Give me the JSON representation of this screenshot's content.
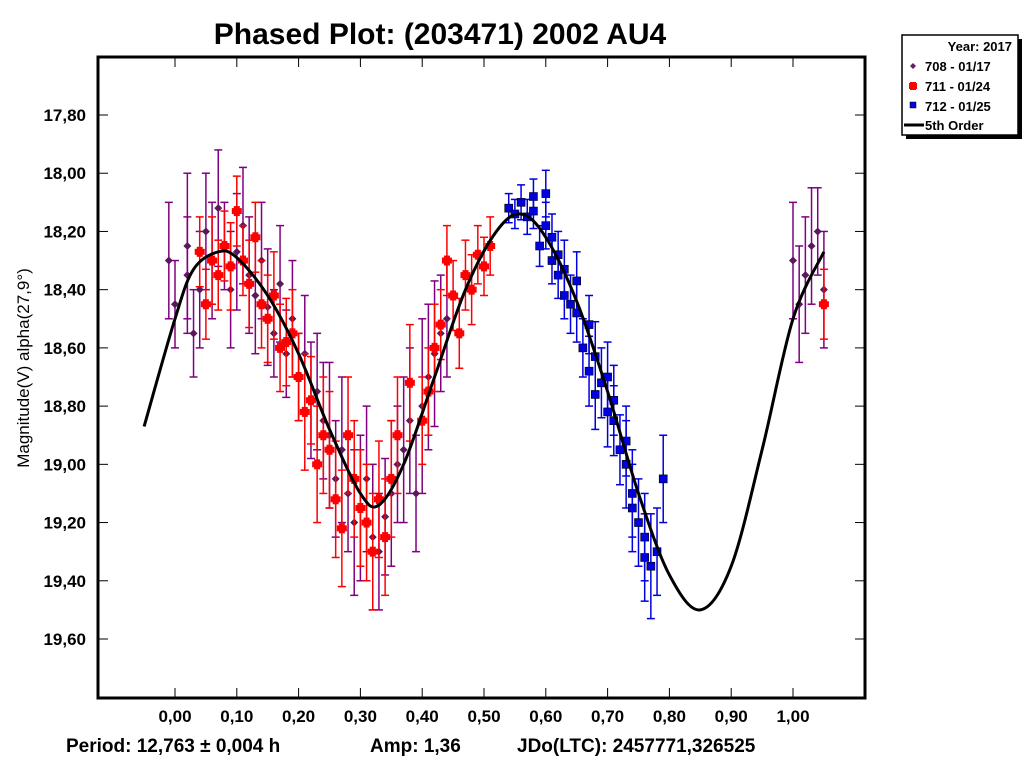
{
  "chart_data": {
    "type": "scatter",
    "title": "Phased Plot: (203471) 2002 AU4",
    "xlabel": "",
    "ylabel": "Magnitude(V) alpha(27,9°)",
    "xlim": [
      -0.08,
      1.07
    ],
    "ylim": [
      19.8,
      17.6
    ],
    "y_inverted": true,
    "x_ticks": [
      "0,00",
      "0,10",
      "0,20",
      "0,30",
      "0,40",
      "0,50",
      "0,60",
      "0,70",
      "0,80",
      "0,90",
      "1,00"
    ],
    "x_tick_values": [
      0,
      0.1,
      0.2,
      0.3,
      0.4,
      0.5,
      0.6,
      0.7,
      0.8,
      0.9,
      1.0
    ],
    "y_ticks": [
      "17,80",
      "18,00",
      "18,20",
      "18,40",
      "18,60",
      "18,80",
      "19,00",
      "19,20",
      "19,40",
      "19,60"
    ],
    "y_tick_values": [
      17.8,
      18.0,
      18.2,
      18.4,
      18.6,
      18.8,
      19.0,
      19.2,
      19.4,
      19.6
    ],
    "grid": false,
    "legend_position": "top-right-outside",
    "legend": {
      "header": "Year: 2017",
      "entries": [
        {
          "label": "708 - 01/17",
          "color": "#6a1b6a",
          "marker": "diamond"
        },
        {
          "label": "711 - 01/24",
          "color": "#ff0000",
          "marker": "star"
        },
        {
          "label": "712 - 01/25",
          "color": "#0000e0",
          "marker": "square"
        },
        {
          "label": "5th Order",
          "color": "#000000",
          "marker": "line"
        }
      ]
    },
    "fit_curve": {
      "name": "5th Order",
      "x": [
        -0.05,
        0.0,
        0.03,
        0.07,
        0.1,
        0.15,
        0.2,
        0.25,
        0.3,
        0.33,
        0.37,
        0.42,
        0.47,
        0.52,
        0.56,
        0.6,
        0.65,
        0.7,
        0.75,
        0.8,
        0.85,
        0.9,
        0.95,
        1.0,
        1.05
      ],
      "y": [
        18.87,
        18.5,
        18.33,
        18.27,
        18.29,
        18.42,
        18.62,
        18.88,
        19.1,
        19.14,
        19.0,
        18.7,
        18.4,
        18.2,
        18.14,
        18.22,
        18.44,
        18.75,
        19.1,
        19.38,
        19.5,
        19.35,
        18.95,
        18.5,
        18.27
      ]
    },
    "series": [
      {
        "name": "708 - 01/17",
        "color": "#800080",
        "marker_color": "#5a1a5a",
        "x": [
          -0.01,
          0.0,
          0.02,
          0.02,
          0.03,
          0.04,
          0.05,
          0.06,
          0.07,
          0.08,
          0.09,
          0.1,
          0.11,
          0.12,
          0.13,
          0.14,
          0.15,
          0.16,
          0.17,
          0.18,
          0.19,
          0.2,
          0.21,
          0.22,
          0.23,
          0.24,
          0.25,
          0.26,
          0.27,
          0.28,
          0.29,
          0.3,
          0.31,
          0.32,
          0.33,
          0.34,
          0.35,
          0.36,
          0.37,
          0.38,
          0.39,
          0.4,
          0.41,
          0.42,
          0.43,
          0.44,
          1.0,
          1.01,
          1.02,
          1.03,
          1.04,
          1.05
        ],
        "y": [
          18.3,
          18.45,
          18.35,
          18.25,
          18.55,
          18.4,
          18.2,
          18.3,
          18.12,
          18.25,
          18.4,
          18.27,
          18.18,
          18.35,
          18.42,
          18.3,
          18.46,
          18.55,
          18.38,
          18.62,
          18.5,
          18.7,
          18.62,
          18.78,
          18.75,
          18.85,
          18.9,
          19.05,
          18.95,
          19.1,
          19.2,
          19.15,
          19.05,
          19.25,
          19.3,
          19.18,
          19.1,
          19.0,
          18.95,
          18.85,
          19.1,
          18.8,
          18.7,
          18.62,
          18.55,
          18.5,
          18.3,
          18.45,
          18.35,
          18.25,
          18.2,
          18.4
        ],
        "err": [
          0.2,
          0.15,
          0.2,
          0.25,
          0.15,
          0.2,
          0.2,
          0.2,
          0.2,
          0.15,
          0.2,
          0.2,
          0.2,
          0.2,
          0.2,
          0.2,
          0.2,
          0.15,
          0.2,
          0.15,
          0.2,
          0.15,
          0.2,
          0.2,
          0.2,
          0.2,
          0.25,
          0.2,
          0.25,
          0.2,
          0.25,
          0.25,
          0.25,
          0.25,
          0.2,
          0.2,
          0.25,
          0.2,
          0.25,
          0.25,
          0.2,
          0.3,
          0.25,
          0.25,
          0.2,
          0.2,
          0.2,
          0.2,
          0.2,
          0.2,
          0.15,
          0.2
        ]
      },
      {
        "name": "711 - 01/24",
        "color": "#ff0000",
        "marker_color": "#ff0000",
        "x": [
          0.04,
          0.05,
          0.06,
          0.07,
          0.08,
          0.09,
          0.1,
          0.11,
          0.12,
          0.13,
          0.14,
          0.15,
          0.16,
          0.17,
          0.18,
          0.19,
          0.2,
          0.21,
          0.22,
          0.23,
          0.24,
          0.25,
          0.26,
          0.27,
          0.28,
          0.29,
          0.3,
          0.31,
          0.32,
          0.33,
          0.34,
          0.35,
          0.36,
          0.38,
          0.4,
          0.41,
          0.42,
          0.43,
          0.44,
          0.45,
          0.46,
          0.47,
          0.48,
          0.49,
          0.5,
          0.51,
          1.05
        ],
        "y": [
          18.27,
          18.45,
          18.3,
          18.35,
          18.25,
          18.32,
          18.13,
          18.3,
          18.38,
          18.22,
          18.45,
          18.5,
          18.42,
          18.6,
          18.58,
          18.55,
          18.7,
          18.82,
          18.78,
          19.0,
          18.9,
          18.95,
          19.12,
          19.22,
          18.9,
          19.05,
          19.15,
          19.2,
          19.3,
          19.12,
          19.25,
          19.05,
          18.9,
          18.72,
          18.85,
          18.75,
          18.6,
          18.52,
          18.3,
          18.42,
          18.55,
          18.35,
          18.4,
          18.28,
          18.32,
          18.25,
          18.45
        ],
        "err": [
          0.12,
          0.12,
          0.15,
          0.12,
          0.12,
          0.15,
          0.12,
          0.12,
          0.15,
          0.12,
          0.15,
          0.15,
          0.15,
          0.15,
          0.15,
          0.15,
          0.15,
          0.2,
          0.15,
          0.2,
          0.2,
          0.2,
          0.2,
          0.2,
          0.2,
          0.2,
          0.2,
          0.2,
          0.2,
          0.2,
          0.2,
          0.2,
          0.2,
          0.2,
          0.15,
          0.15,
          0.15,
          0.12,
          0.12,
          0.12,
          0.12,
          0.12,
          0.12,
          0.1,
          0.1,
          0.1,
          0.12
        ]
      },
      {
        "name": "712 - 01/25",
        "color": "#0000e0",
        "marker_color": "#0000e0",
        "x": [
          0.54,
          0.55,
          0.56,
          0.57,
          0.58,
          0.58,
          0.59,
          0.6,
          0.6,
          0.61,
          0.61,
          0.62,
          0.62,
          0.63,
          0.63,
          0.64,
          0.65,
          0.65,
          0.66,
          0.67,
          0.67,
          0.68,
          0.68,
          0.69,
          0.7,
          0.7,
          0.71,
          0.71,
          0.72,
          0.73,
          0.73,
          0.74,
          0.74,
          0.75,
          0.76,
          0.76,
          0.77,
          0.78,
          0.79
        ],
        "y": [
          18.12,
          18.14,
          18.1,
          18.15,
          18.08,
          18.13,
          18.25,
          18.18,
          18.07,
          18.22,
          18.3,
          18.35,
          18.28,
          18.42,
          18.33,
          18.45,
          18.48,
          18.37,
          18.6,
          18.52,
          18.68,
          18.63,
          18.76,
          18.72,
          18.7,
          18.82,
          18.85,
          18.78,
          18.95,
          18.92,
          19.0,
          19.15,
          19.1,
          19.2,
          19.25,
          19.32,
          19.35,
          19.3,
          19.05
        ],
        "err": [
          0.05,
          0.05,
          0.06,
          0.06,
          0.06,
          0.06,
          0.07,
          0.08,
          0.08,
          0.08,
          0.08,
          0.08,
          0.08,
          0.08,
          0.1,
          0.1,
          0.1,
          0.1,
          0.1,
          0.1,
          0.12,
          0.12,
          0.12,
          0.12,
          0.12,
          0.12,
          0.12,
          0.12,
          0.12,
          0.12,
          0.15,
          0.15,
          0.15,
          0.15,
          0.15,
          0.15,
          0.18,
          0.15,
          0.15
        ]
      }
    ],
    "annotations": [
      "Period: 12,763 ± 0,004 h",
      "Amp: 1,36",
      "JDo(LTC): 2457771,326525"
    ]
  },
  "footer": {
    "period": "Period: 12,763 ± 0,004 h",
    "amp": "Amp: 1,36",
    "jdo": "JDo(LTC): 2457771,326525"
  }
}
